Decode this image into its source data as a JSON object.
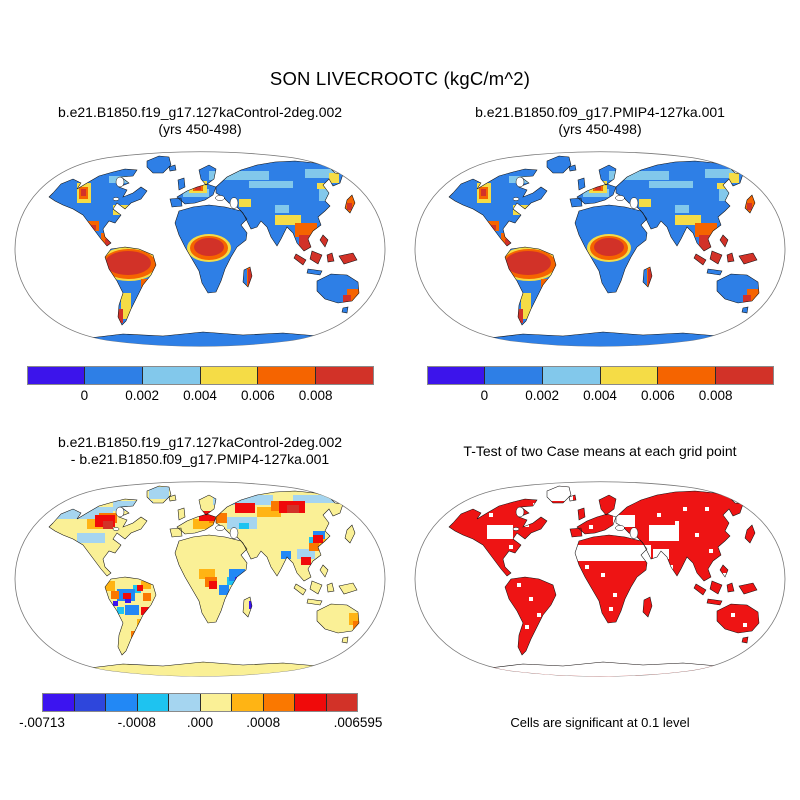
{
  "page": {
    "title": "SON LIVECROOTC (kgC/m^2)",
    "background": "#ffffff"
  },
  "panels": {
    "top_left": {
      "title_line1": "b.e21.B1850.f19_g17.127kaControl-2deg.002",
      "title_line2": "(yrs 450-498)"
    },
    "top_right": {
      "title_line1": "b.e21.B1850.f09_g17.PMIP4-127ka.001",
      "title_line2": "(yrs 450-498)"
    },
    "bottom_left": {
      "title_line1": "b.e21.B1850.f19_g17.127kaControl-2deg.002",
      "title_line2": "- b.e21.B1850.f09_g17.PMIP4-127ka.001"
    },
    "bottom_right": {
      "title": "T-Test of two Case means at each grid point",
      "caption": "Cells are significant at 0.1 level"
    }
  },
  "colors": {
    "value": [
      "#3C14EB",
      "#2E7FE6",
      "#82C8EB",
      "#F5DC46",
      "#F56400",
      "#D23228"
    ],
    "diff": [
      "#3C14F0",
      "#2E46DC",
      "#2288F5",
      "#1EC3F0",
      "#A5D5F0",
      "#FAF096",
      "#FFB414",
      "#FA7800",
      "#F00A0A",
      "#D23228"
    ],
    "ttest": "#EE1414",
    "coastline": "#111111",
    "map_outline": "#777777",
    "ocean": "#ffffff"
  },
  "colorbars": {
    "value": {
      "colors": [
        "#3C14EB",
        "#2E7FE6",
        "#82C8EB",
        "#F5DC46",
        "#F56400",
        "#D23228"
      ],
      "ticks": [
        {
          "label": "0",
          "pos": 0.1667
        },
        {
          "label": "0.002",
          "pos": 0.3333
        },
        {
          "label": "0.004",
          "pos": 0.5
        },
        {
          "label": "0.006",
          "pos": 0.6667
        },
        {
          "label": "0.008",
          "pos": 0.8333
        }
      ]
    },
    "diff": {
      "colors": [
        "#3C14F0",
        "#2E46DC",
        "#2288F5",
        "#1EC3F0",
        "#A5D5F0",
        "#FAF096",
        "#FFB414",
        "#FA7800",
        "#F00A0A",
        "#D23228"
      ],
      "ticks": [
        {
          "label": "-.00713",
          "pos": 0.0
        },
        {
          "label": "-.0008",
          "pos": 0.3
        },
        {
          "label": ".000",
          "pos": 0.5
        },
        {
          "label": ".0008",
          "pos": 0.7
        },
        {
          "label": ".006595",
          "pos": 1.0
        }
      ]
    }
  },
  "chart_data": [
    {
      "type": "heatmap",
      "subtype": "global-map-robinson",
      "panel": "top_left",
      "title": "b.e21.B1850.f19_g17.127kaControl-2deg.002 (yrs 450-498)",
      "variable": "LIVECROOTC",
      "season": "SON",
      "units": "kgC/m^2",
      "colorbar_tick_values": [
        0,
        0.002,
        0.004,
        0.006,
        0.008
      ],
      "colorbar_colors": [
        "#3C14EB",
        "#2E7FE6",
        "#82C8EB",
        "#F5DC46",
        "#F56400",
        "#D23228"
      ],
      "ocean": "masked white",
      "summary": "Most land 0-0.002 (blue); highest values (>0.008, red) over Amazon basin, Congo basin, Maritime Continent / Southeast Asia, Madagascar, New Zealand; yellow-orange fringes around tropical maxima, along western North America, Europe, Himalayan front and east Asian coast; light-blue patches across high-latitude Eurasia and Canada; Antarctica blue."
    },
    {
      "type": "heatmap",
      "subtype": "global-map-robinson",
      "panel": "top_right",
      "title": "b.e21.B1850.f09_g17.PMIP4-127ka.001 (yrs 450-498)",
      "variable": "LIVECROOTC",
      "season": "SON",
      "units": "kgC/m^2",
      "colorbar_tick_values": [
        0,
        0.002,
        0.004,
        0.006,
        0.008
      ],
      "colorbar_colors": [
        "#3C14EB",
        "#2E7FE6",
        "#82C8EB",
        "#F5DC46",
        "#F56400",
        "#D23228"
      ],
      "ocean": "masked white",
      "summary": "Same spatial pattern as control at higher resolution: red maxima over Amazon, Congo and Indonesia/New Guinea, blue elsewhere, Antarctica blue."
    },
    {
      "type": "heatmap",
      "subtype": "global-map-robinson-difference",
      "panel": "bottom_left",
      "title": "b.e21.B1850.f19_g17.127kaControl-2deg.002 - b.e21.B1850.f09_g17.PMIP4-127ka.001",
      "colorbar_tick_values": [
        -0.00713,
        -0.0008,
        0.0,
        0.0008,
        0.006595
      ],
      "colorbar_colors": [
        "#3C14F0",
        "#2E46DC",
        "#2288F5",
        "#1EC3F0",
        "#A5D5F0",
        "#FAF096",
        "#FFB414",
        "#FA7800",
        "#F00A0A",
        "#D23228"
      ],
      "value_range": [
        -0.00713,
        0.006595
      ],
      "ocean": "masked white",
      "summary": "Near-zero (pale yellow) over most land including Antarctica; strong positive (red/orange) patches over central Canada, northern Europe, Siberia and northeast China; mottled mixed positive/negative (blue/cyan/orange/red) over South America, central-east Africa, south Asia and east Australia."
    },
    {
      "type": "heatmap",
      "subtype": "global-map-robinson-significance",
      "panel": "bottom_right",
      "title": "T-Test of two Case means at each grid point",
      "caption": "Cells are significant at 0.1 level",
      "significant_color": "#EE1414",
      "not_significant_color": "#ffffff",
      "summary": "Most vegetated land is significant (red) with white gaps over the Sahara, central North America, central Asia, Greenland and scattered speckles; Antarctica outline only."
    }
  ]
}
